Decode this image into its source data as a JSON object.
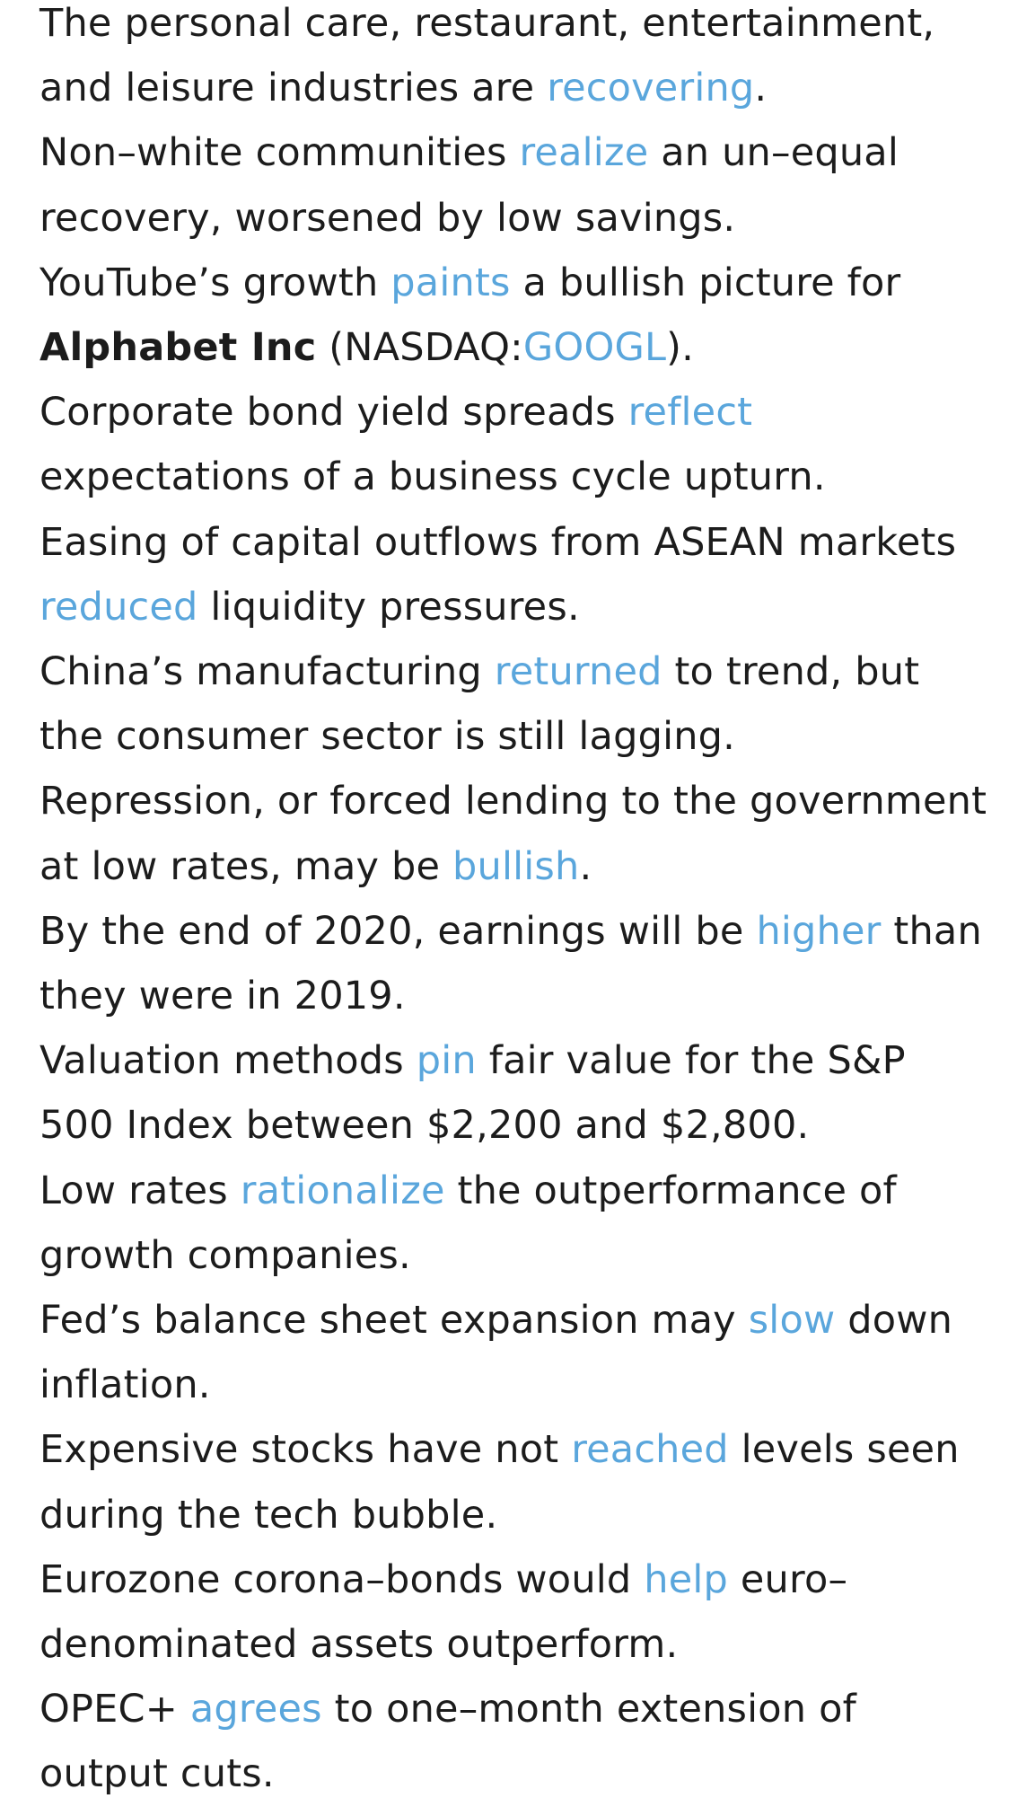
{
  "items": [
    {
      "pre": "The personal care, restaurant, entertainment, and leisure industries are ",
      "link": "recovering",
      "post": "."
    },
    {
      "pre": "Non–white communities ",
      "link": "realize",
      "post": " an un–equal recovery, worsened by low savings."
    },
    {
      "pre": "YouTube’s growth ",
      "link": "paints",
      "post": " a bullish picture for ",
      "company": "Alphabet Inc",
      "ticker_prefix": " (NASDAQ:",
      "ticker": "GOOGL",
      "ticker_suffix": ")."
    },
    {
      "pre": "Corporate bond yield spreads ",
      "link": "reflect",
      "post": " expectations of a business cycle upturn."
    },
    {
      "pre": "Easing of capital outflows from ASEAN markets ",
      "link": "reduced",
      "post": " liquidity pressures."
    },
    {
      "pre": "China’s manufacturing ",
      "link": "returned",
      "post": " to trend, but the consumer sector is still lagging."
    },
    {
      "pre": "Repression, or forced lending to the government at low rates, may be ",
      "link": "bullish",
      "post": "."
    },
    {
      "pre": "By the end of 2020, earnings will be ",
      "link": "higher",
      "post": " than they were in 2019."
    },
    {
      "pre": "Valuation methods ",
      "link": "pin",
      "post": " fair value for the S&P 500 Index between $2,200 and $2,800."
    },
    {
      "pre": "Low rates ",
      "link": "rationalize",
      "post": " the outperformance of growth companies."
    },
    {
      "pre": "Fed’s balance sheet expansion may ",
      "link": "slow",
      "post": " down inflation."
    },
    {
      "pre": "Expensive stocks have not ",
      "link": "reached",
      "post": " levels seen during the tech bubble."
    },
    {
      "pre": "Eurozone corona–bonds would ",
      "link": "help",
      "post": " euro–denominated assets outperform."
    },
    {
      "pre": "OPEC+ ",
      "link": "agrees",
      "post": " to one–month extension of output cuts."
    }
  ],
  "colors": {
    "text": "#1c1c1c",
    "link": "#5aa6dc",
    "background": "#ffffff"
  }
}
